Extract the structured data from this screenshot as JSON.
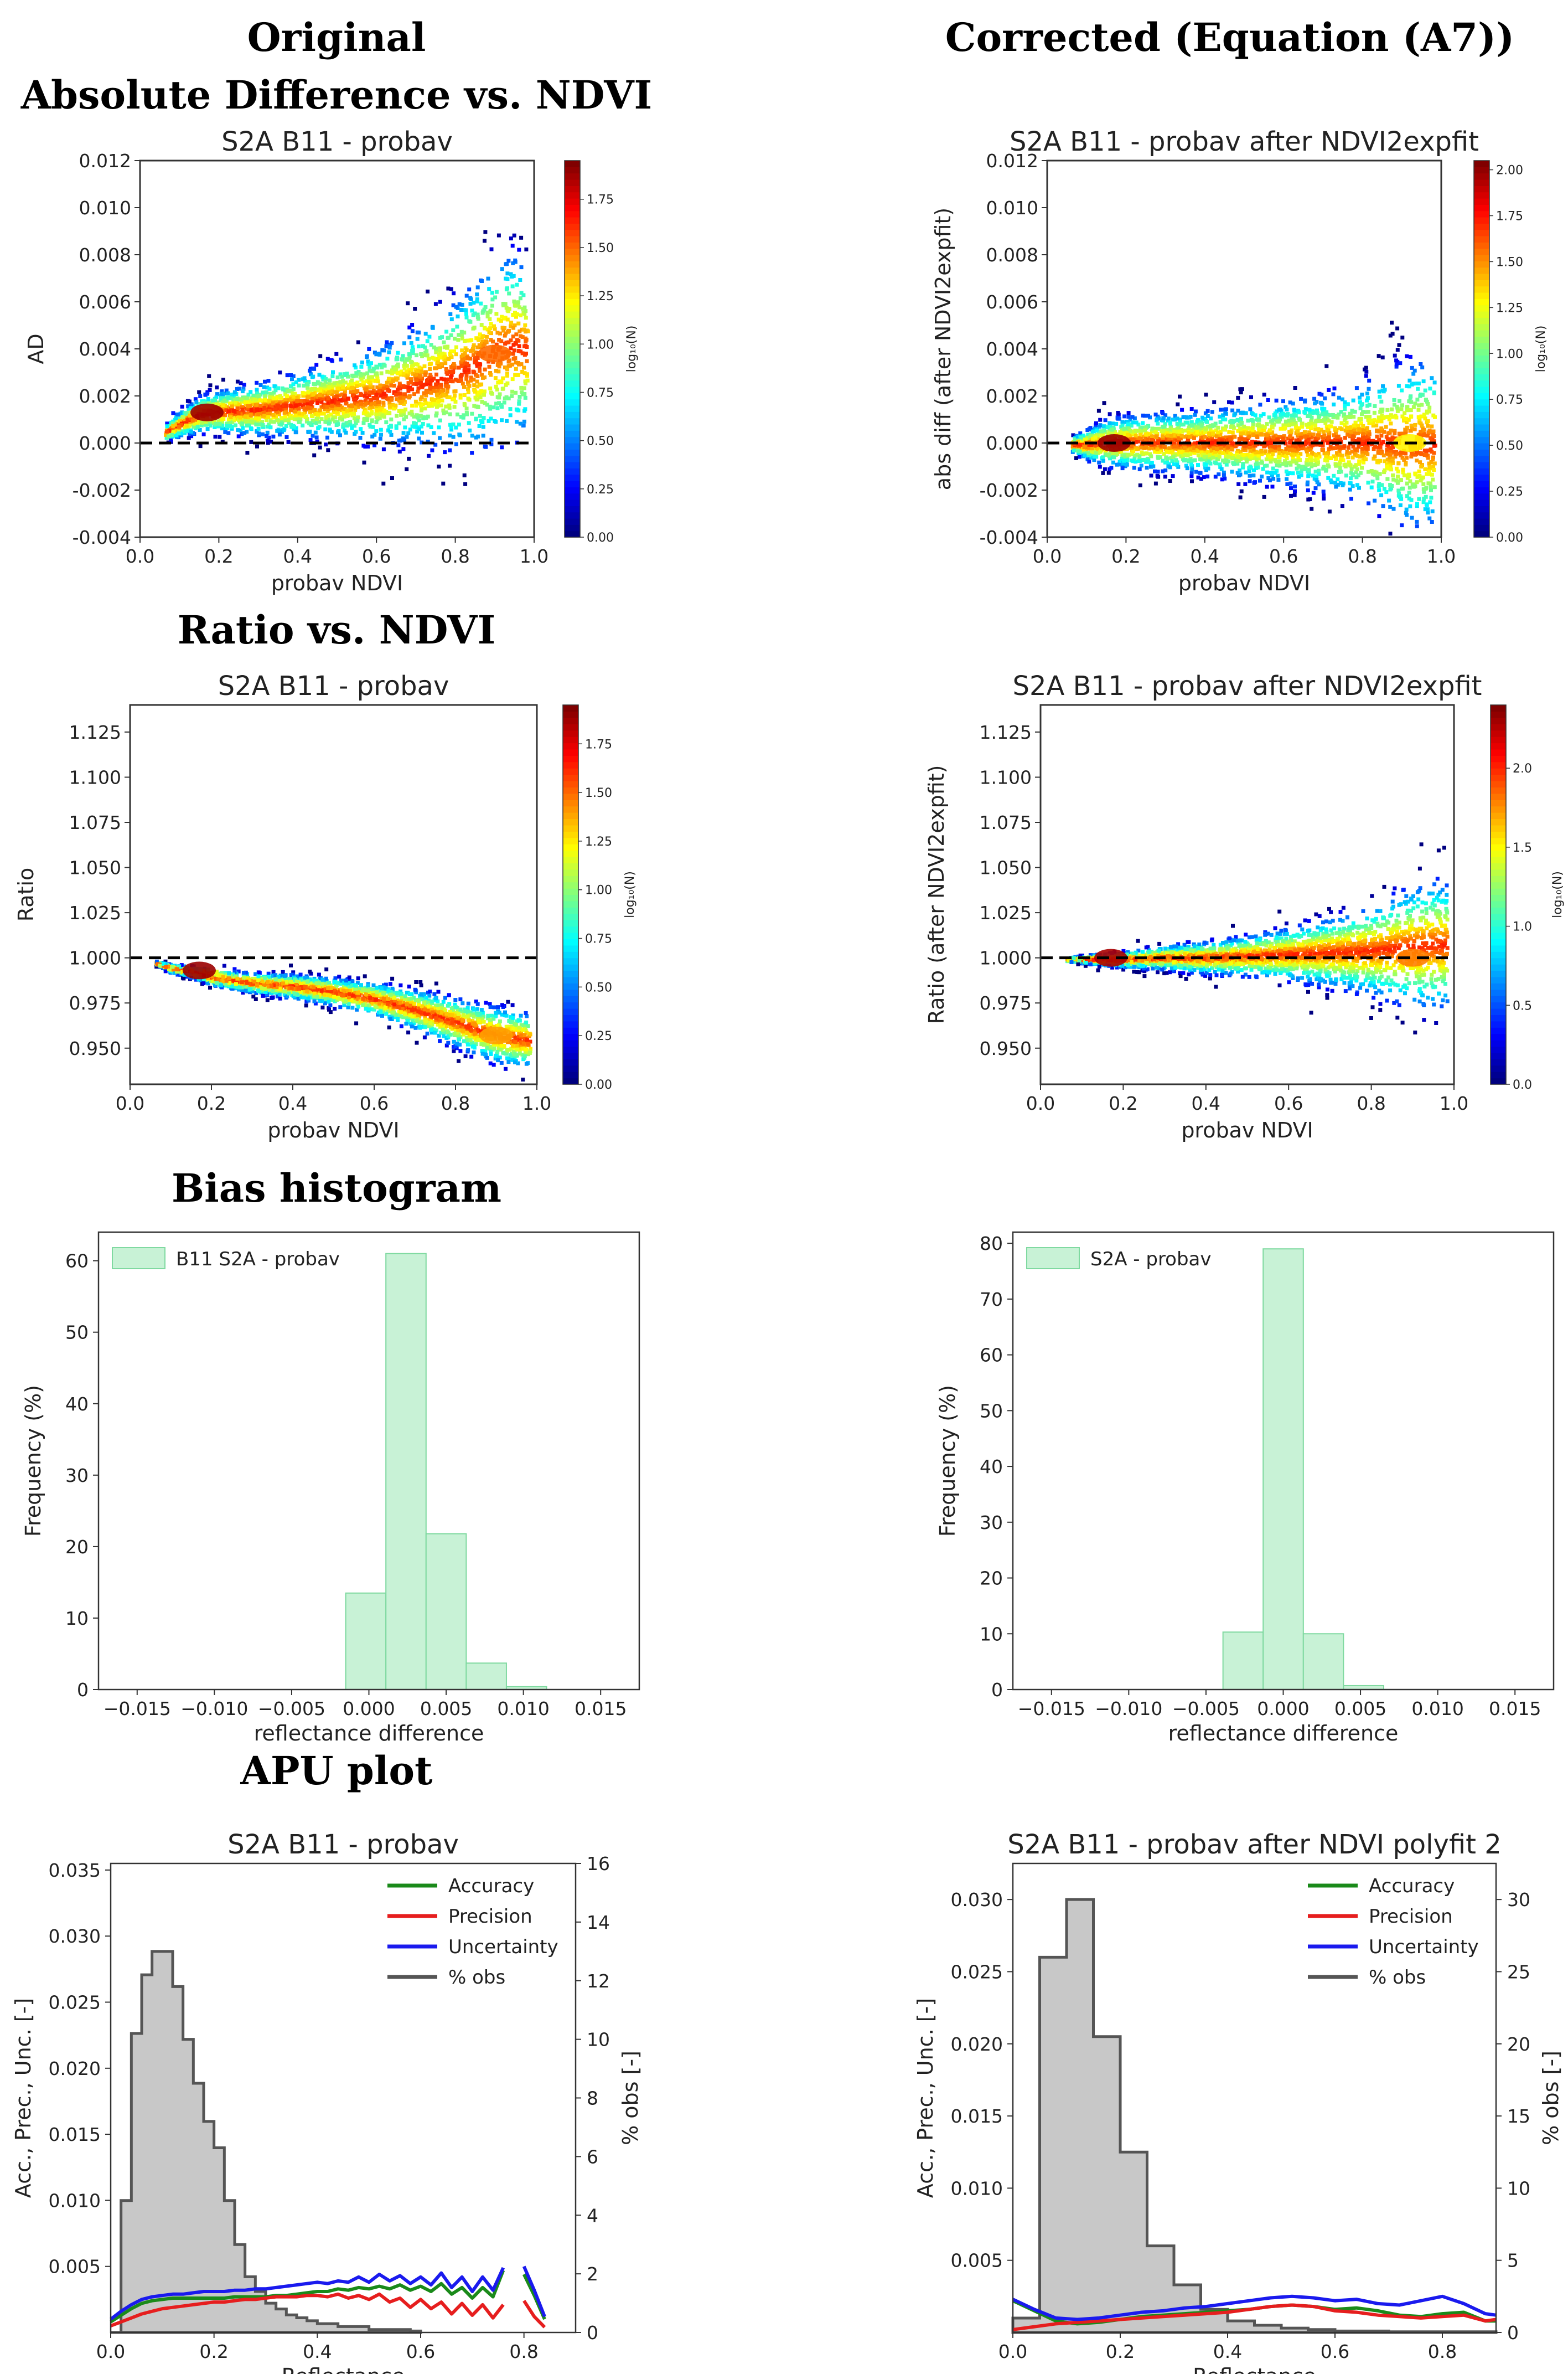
{
  "column_titles": {
    "left": "Original",
    "right": "Corrected (Equation (A7))"
  },
  "row_titles": {
    "ad": "Absolute Difference vs. NDVI",
    "ratio": "Ratio vs. NDVI",
    "hist": "Bias histogram",
    "apu": "APU plot"
  },
  "colors": {
    "hist_fill": "#c8f2d6",
    "hist_edge": "#7fd9a0",
    "accuracy": "#1a8a1a",
    "precision": "#e61e1e",
    "uncertainty": "#1a1aee",
    "obs_fill": "#c8c8c8",
    "obs_edge": "#555555"
  },
  "chart_data": [
    {
      "id": "ad_orig",
      "type": "scatter",
      "title": "S2A B11 - probav",
      "xlabel": "probav NDVI",
      "ylabel": "AD",
      "xlim": [
        0.0,
        1.0
      ],
      "ylim": [
        -0.004,
        0.012
      ],
      "xticks": [
        "0.0",
        "0.2",
        "0.4",
        "0.6",
        "0.8",
        "1.0"
      ],
      "yticks": [
        "-0.004",
        "-0.002",
        "0.000",
        "0.002",
        "0.004",
        "0.006",
        "0.008",
        "0.010",
        "0.012"
      ],
      "reference_line_y": 0.0,
      "density_ridge": {
        "x": [
          0.06,
          0.1,
          0.15,
          0.2,
          0.3,
          0.4,
          0.5,
          0.6,
          0.7,
          0.8,
          0.85,
          0.9,
          0.95,
          0.98
        ],
        "y": [
          0.0005,
          0.0009,
          0.0013,
          0.0014,
          0.0015,
          0.0017,
          0.0019,
          0.0021,
          0.0025,
          0.003,
          0.0034,
          0.004,
          0.0042,
          0.004
        ],
        "spread": [
          0.0003,
          0.0005,
          0.0007,
          0.0008,
          0.001,
          0.0012,
          0.0015,
          0.0018,
          0.0022,
          0.0028,
          0.0032,
          0.0035,
          0.0035,
          0.003
        ]
      },
      "hotspots": [
        {
          "x": 0.17,
          "y": 0.0013,
          "level": 1.9
        },
        {
          "x": 0.9,
          "y": 0.0038,
          "level": 1.5
        }
      ],
      "colorbar": {
        "label": "log₁₀(N)",
        "min": 0.0,
        "max": 1.95,
        "ticks": [
          "0.00",
          "0.25",
          "0.50",
          "0.75",
          "1.00",
          "1.25",
          "1.50",
          "1.75"
        ]
      }
    },
    {
      "id": "ad_corr",
      "type": "scatter",
      "title": "S2A B11 - probav after NDVI2expfit",
      "xlabel": "probav NDVI",
      "ylabel": "abs diff (after NDVI2expfit)",
      "xlim": [
        0.0,
        1.0
      ],
      "ylim": [
        -0.004,
        0.012
      ],
      "xticks": [
        "0.0",
        "0.2",
        "0.4",
        "0.6",
        "0.8",
        "1.0"
      ],
      "yticks": [
        "-0.004",
        "-0.002",
        "0.000",
        "0.002",
        "0.004",
        "0.006",
        "0.008",
        "0.010",
        "0.012"
      ],
      "reference_line_y": 0.0,
      "density_ridge": {
        "x": [
          0.06,
          0.1,
          0.15,
          0.2,
          0.3,
          0.4,
          0.5,
          0.6,
          0.7,
          0.8,
          0.85,
          0.9,
          0.95,
          0.98
        ],
        "y": [
          0.0,
          0.0,
          0.0001,
          0.0001,
          0.0001,
          0.0001,
          0.0001,
          0.0001,
          0.0001,
          0.0001,
          0.0001,
          0.0,
          0.0,
          0.0
        ],
        "spread": [
          0.0003,
          0.0006,
          0.0009,
          0.001,
          0.0011,
          0.0012,
          0.0014,
          0.0016,
          0.0018,
          0.0022,
          0.0026,
          0.003,
          0.0032,
          0.003
        ]
      },
      "hotspots": [
        {
          "x": 0.17,
          "y": 0.0,
          "level": 2.0
        },
        {
          "x": 0.92,
          "y": 0.0,
          "level": 1.3
        }
      ],
      "colorbar": {
        "label": "log₁₀(N)",
        "min": 0.0,
        "max": 2.05,
        "ticks": [
          "0.00",
          "0.25",
          "0.50",
          "0.75",
          "1.00",
          "1.25",
          "1.50",
          "1.75",
          "2.00"
        ]
      }
    },
    {
      "id": "ratio_orig",
      "type": "scatter",
      "title": "S2A B11 - probav",
      "xlabel": "probav NDVI",
      "ylabel": "Ratio",
      "xlim": [
        0.0,
        1.0
      ],
      "ylim": [
        0.93,
        1.14
      ],
      "xticks": [
        "0.0",
        "0.2",
        "0.4",
        "0.6",
        "0.8",
        "1.0"
      ],
      "yticks": [
        "0.950",
        "0.975",
        "1.000",
        "1.025",
        "1.050",
        "1.075",
        "1.100",
        "1.125"
      ],
      "reference_line_y": 1.0,
      "density_ridge": {
        "x": [
          0.06,
          0.1,
          0.15,
          0.2,
          0.3,
          0.4,
          0.5,
          0.6,
          0.7,
          0.8,
          0.85,
          0.9,
          0.95,
          0.98
        ],
        "y": [
          0.998,
          0.995,
          0.993,
          0.99,
          0.987,
          0.985,
          0.982,
          0.978,
          0.972,
          0.965,
          0.961,
          0.958,
          0.956,
          0.955
        ],
        "spread": [
          0.001,
          0.002,
          0.003,
          0.004,
          0.005,
          0.006,
          0.007,
          0.008,
          0.01,
          0.012,
          0.013,
          0.014,
          0.014,
          0.013
        ]
      },
      "hotspots": [
        {
          "x": 0.17,
          "y": 0.993,
          "level": 1.9
        },
        {
          "x": 0.9,
          "y": 0.957,
          "level": 1.4
        }
      ],
      "colorbar": {
        "label": "log₁₀(N)",
        "min": 0.0,
        "max": 1.95,
        "ticks": [
          "0.00",
          "0.25",
          "0.50",
          "0.75",
          "1.00",
          "1.25",
          "1.50",
          "1.75"
        ]
      }
    },
    {
      "id": "ratio_corr",
      "type": "scatter",
      "title": "S2A B11 - probav after NDVI2expfit",
      "xlabel": "probav NDVI",
      "ylabel": "Ratio (after NDVI2expfit)",
      "xlim": [
        0.0,
        1.0
      ],
      "ylim": [
        0.93,
        1.14
      ],
      "xticks": [
        "0.0",
        "0.2",
        "0.4",
        "0.6",
        "0.8",
        "1.0"
      ],
      "yticks": [
        "0.950",
        "0.975",
        "1.000",
        "1.025",
        "1.050",
        "1.075",
        "1.100",
        "1.125"
      ],
      "reference_line_y": 1.0,
      "density_ridge": {
        "x": [
          0.06,
          0.1,
          0.15,
          0.2,
          0.3,
          0.4,
          0.5,
          0.6,
          0.7,
          0.8,
          0.85,
          0.9,
          0.95,
          0.98
        ],
        "y": [
          1.0,
          1.0,
          1.0,
          1.0,
          1.001,
          1.001,
          1.002,
          1.003,
          1.004,
          1.005,
          1.006,
          1.007,
          1.008,
          1.008
        ],
        "spread": [
          0.001,
          0.002,
          0.003,
          0.004,
          0.006,
          0.008,
          0.01,
          0.013,
          0.017,
          0.022,
          0.026,
          0.03,
          0.032,
          0.03
        ]
      },
      "hotspots": [
        {
          "x": 0.17,
          "y": 1.0,
          "level": 2.3
        },
        {
          "x": 0.9,
          "y": 1.0,
          "level": 1.8
        }
      ],
      "colorbar": {
        "label": "log₁₀(N)",
        "min": 0.0,
        "max": 2.4,
        "ticks": [
          "0.0",
          "0.5",
          "1.0",
          "1.5",
          "2.0"
        ]
      }
    },
    {
      "id": "hist_orig",
      "type": "bar",
      "xlabel": "reflectance difference",
      "ylabel": "Frequency (%)",
      "xlim": [
        -0.0175,
        0.0175
      ],
      "ylim": [
        0,
        64
      ],
      "xticks": [
        -0.015,
        -0.01,
        -0.005,
        0.0,
        0.005,
        0.01,
        0.015
      ],
      "xtick_labels": [
        "−0.015",
        "−0.010",
        "−0.005",
        "0.000",
        "0.005",
        "0.010",
        "0.015"
      ],
      "yticks": [
        0,
        10,
        20,
        30,
        40,
        50,
        60
      ],
      "ytick_labels": [
        "0",
        "10",
        "20",
        "30",
        "40",
        "50",
        "60"
      ],
      "legend": "B11 S2A - probav",
      "bin_edges": [
        -0.0015,
        0.0011,
        0.0037,
        0.0063,
        0.0089,
        0.0115
      ],
      "values": [
        13.5,
        61.0,
        21.8,
        3.7,
        0.4
      ]
    },
    {
      "id": "hist_corr",
      "type": "bar",
      "xlabel": "reflectance difference",
      "ylabel": "Frequency (%)",
      "xlim": [
        -0.0175,
        0.0175
      ],
      "ylim": [
        0,
        82
      ],
      "xticks": [
        -0.015,
        -0.01,
        -0.005,
        0.0,
        0.005,
        0.01,
        0.015
      ],
      "xtick_labels": [
        "−0.015",
        "−0.010",
        "−0.005",
        "0.000",
        "0.005",
        "0.010",
        "0.015"
      ],
      "yticks": [
        0,
        10,
        20,
        30,
        40,
        50,
        60,
        70,
        80
      ],
      "ytick_labels": [
        "0",
        "10",
        "20",
        "30",
        "40",
        "50",
        "60",
        "70",
        "80"
      ],
      "legend": "S2A - probav",
      "bin_edges": [
        -0.0039,
        -0.0013,
        0.0013,
        0.0039,
        0.0065
      ],
      "values": [
        10.3,
        79.0,
        10.0,
        0.7
      ]
    },
    {
      "id": "apu_orig",
      "type": "line",
      "title": "S2A B11 - probav",
      "xlabel": "Reflectance",
      "ylabel": "Acc., Prec., Unc. [-]",
      "ylabel_right": "% obs [-]",
      "xlim": [
        0.0,
        0.9
      ],
      "ylim": [
        0.0,
        0.0355
      ],
      "ylim_right": [
        0,
        16
      ],
      "xticks": [
        0.0,
        0.2,
        0.4,
        0.6,
        0.8
      ],
      "xtick_labels": [
        "0.0",
        "0.2",
        "0.4",
        "0.6",
        "0.8"
      ],
      "yticks": [
        0.005,
        0.01,
        0.015,
        0.02,
        0.025,
        0.03,
        0.035
      ],
      "ytick_labels": [
        "0.005",
        "0.010",
        "0.015",
        "0.020",
        "0.025",
        "0.030",
        "0.035"
      ],
      "yticks_right": [
        0,
        2,
        4,
        6,
        8,
        10,
        12,
        14,
        16
      ],
      "ytick_labels_right": [
        "0",
        "2",
        "4",
        "6",
        "8",
        "10",
        "12",
        "14",
        "16"
      ],
      "legend": [
        "Accuracy",
        "Precision",
        "Uncertainty",
        "% obs"
      ],
      "x": [
        0.0,
        0.02,
        0.04,
        0.06,
        0.08,
        0.1,
        0.12,
        0.14,
        0.16,
        0.18,
        0.2,
        0.22,
        0.24,
        0.26,
        0.28,
        0.3,
        0.32,
        0.34,
        0.36,
        0.38,
        0.4,
        0.42,
        0.44,
        0.46,
        0.48,
        0.5,
        0.52,
        0.54,
        0.56,
        0.58,
        0.6,
        0.62,
        0.64,
        0.66,
        0.68,
        0.7,
        0.72,
        0.74,
        0.76,
        0.78,
        0.8,
        0.82,
        0.84,
        0.86
      ],
      "series": [
        {
          "name": "Accuracy",
          "values": [
            0.0008,
            0.0013,
            0.0018,
            0.0022,
            0.0024,
            0.0025,
            0.0026,
            0.0026,
            0.0026,
            0.0026,
            0.0026,
            0.0026,
            0.0027,
            0.0027,
            0.0027,
            0.0027,
            0.0028,
            0.0028,
            0.0029,
            0.003,
            0.0031,
            0.0031,
            0.0033,
            0.0032,
            0.0034,
            0.0033,
            0.0035,
            0.0033,
            0.0036,
            0.0032,
            0.0035,
            0.0031,
            0.0037,
            0.0029,
            0.0034,
            0.0026,
            0.0034,
            0.0027,
            0.0047,
            null,
            0.0044,
            0.0028,
            0.001,
            null
          ]
        },
        {
          "name": "Precision",
          "values": [
            0.0005,
            0.0008,
            0.0011,
            0.0014,
            0.0016,
            0.0018,
            0.0019,
            0.002,
            0.0021,
            0.0022,
            0.0023,
            0.0023,
            0.0024,
            0.0025,
            0.0025,
            0.0026,
            0.0027,
            0.0027,
            0.0027,
            0.0028,
            0.0028,
            0.0027,
            0.0029,
            0.0026,
            0.0028,
            0.0025,
            0.0029,
            0.0023,
            0.0026,
            0.0019,
            0.0025,
            0.0018,
            0.0023,
            0.0014,
            0.0022,
            0.0013,
            0.0021,
            0.0011,
            0.0021,
            null,
            0.0024,
            0.0012,
            0.0004,
            null
          ]
        },
        {
          "name": "Uncertainty",
          "values": [
            0.001,
            0.0016,
            0.0021,
            0.0025,
            0.0027,
            0.0028,
            0.0029,
            0.0029,
            0.003,
            0.0031,
            0.0031,
            0.0031,
            0.0032,
            0.0032,
            0.0033,
            0.0033,
            0.0034,
            0.0035,
            0.0036,
            0.0037,
            0.0038,
            0.0037,
            0.0039,
            0.0038,
            0.0042,
            0.0038,
            0.0044,
            0.0039,
            0.0043,
            0.0037,
            0.0042,
            0.0036,
            0.0045,
            0.0034,
            0.0042,
            0.0031,
            0.0042,
            0.0032,
            0.0049,
            null,
            0.005,
            0.0032,
            0.0012,
            null
          ]
        }
      ],
      "obs_bin_edges": [
        0.0,
        0.02,
        0.04,
        0.06,
        0.08,
        0.1,
        0.12,
        0.14,
        0.16,
        0.18,
        0.2,
        0.22,
        0.24,
        0.26,
        0.28,
        0.3,
        0.32,
        0.34,
        0.36,
        0.38,
        0.4,
        0.42,
        0.44,
        0.46,
        0.48,
        0.5,
        0.52,
        0.54,
        0.56,
        0.58,
        0.6
      ],
      "obs_values": [
        0.0,
        4.5,
        10.2,
        12.2,
        13.0,
        13.0,
        11.8,
        10.0,
        8.5,
        7.2,
        6.3,
        4.5,
        3.0,
        1.9,
        1.4,
        1.0,
        0.8,
        0.6,
        0.5,
        0.4,
        0.3,
        0.3,
        0.2,
        0.2,
        0.2,
        0.1,
        0.1,
        0.1,
        0.1,
        0.05
      ]
    },
    {
      "id": "apu_corr",
      "type": "line",
      "title": "S2A B11 - probav after NDVI polyfit 2",
      "xlabel": "Reflectance",
      "ylabel": "Acc., Prec., Unc. [-]",
      "ylabel_right": "% obs [-]",
      "xlim": [
        0.0,
        0.9
      ],
      "ylim": [
        0.0,
        0.0325
      ],
      "ylim_right": [
        0,
        32.5
      ],
      "xticks": [
        0.0,
        0.2,
        0.4,
        0.6,
        0.8
      ],
      "xtick_labels": [
        "0.0",
        "0.2",
        "0.4",
        "0.6",
        "0.8"
      ],
      "yticks": [
        0.005,
        0.01,
        0.015,
        0.02,
        0.025,
        0.03
      ],
      "ytick_labels": [
        "0.005",
        "0.010",
        "0.015",
        "0.020",
        "0.025",
        "0.030"
      ],
      "yticks_right": [
        0,
        5,
        10,
        15,
        20,
        25,
        30
      ],
      "ytick_labels_right": [
        "0",
        "5",
        "10",
        "15",
        "20",
        "25",
        "30"
      ],
      "legend": [
        "Accuracy",
        "Precision",
        "Uncertainty",
        "% obs"
      ],
      "x": [
        0.0,
        0.04,
        0.08,
        0.12,
        0.16,
        0.2,
        0.24,
        0.28,
        0.32,
        0.36,
        0.4,
        0.44,
        0.48,
        0.52,
        0.56,
        0.6,
        0.64,
        0.68,
        0.72,
        0.76,
        0.8,
        0.84,
        0.88,
        0.9
      ],
      "series": [
        {
          "name": "Accuracy",
          "values": [
            0.0022,
            0.0015,
            0.0008,
            0.0006,
            0.0007,
            0.0009,
            0.0011,
            0.0012,
            0.0013,
            0.0014,
            0.0015,
            0.0016,
            0.0018,
            0.0019,
            0.0018,
            0.0016,
            0.0017,
            0.0015,
            0.0012,
            0.0011,
            0.0013,
            0.0014,
            0.0008,
            0.0008
          ]
        },
        {
          "name": "Precision",
          "values": [
            0.0002,
            0.0004,
            0.0006,
            0.0007,
            0.0008,
            0.0009,
            0.001,
            0.0011,
            0.0012,
            0.0013,
            0.0014,
            0.0016,
            0.0018,
            0.0019,
            0.0018,
            0.0015,
            0.0014,
            0.0012,
            0.0011,
            0.001,
            0.0011,
            0.0012,
            0.0008,
            0.0009
          ]
        },
        {
          "name": "Uncertainty",
          "values": [
            0.0023,
            0.0016,
            0.001,
            0.0009,
            0.001,
            0.0012,
            0.0014,
            0.0015,
            0.0017,
            0.0018,
            0.002,
            0.0022,
            0.0024,
            0.0025,
            0.0024,
            0.0022,
            0.0023,
            0.002,
            0.0019,
            0.0022,
            0.0025,
            0.002,
            0.0013,
            0.0012
          ]
        }
      ],
      "obs_bin_edges": [
        0.0,
        0.05,
        0.1,
        0.15,
        0.2,
        0.25,
        0.3,
        0.35,
        0.4,
        0.45,
        0.5,
        0.55,
        0.6,
        0.65,
        0.7,
        0.75,
        0.8,
        0.85,
        0.9
      ],
      "obs_values": [
        1.0,
        26.0,
        30.0,
        20.5,
        12.5,
        6.0,
        3.3,
        1.6,
        0.8,
        0.5,
        0.3,
        0.2,
        0.1,
        0.1,
        0.05,
        0.05,
        0.05,
        0.05
      ]
    }
  ]
}
